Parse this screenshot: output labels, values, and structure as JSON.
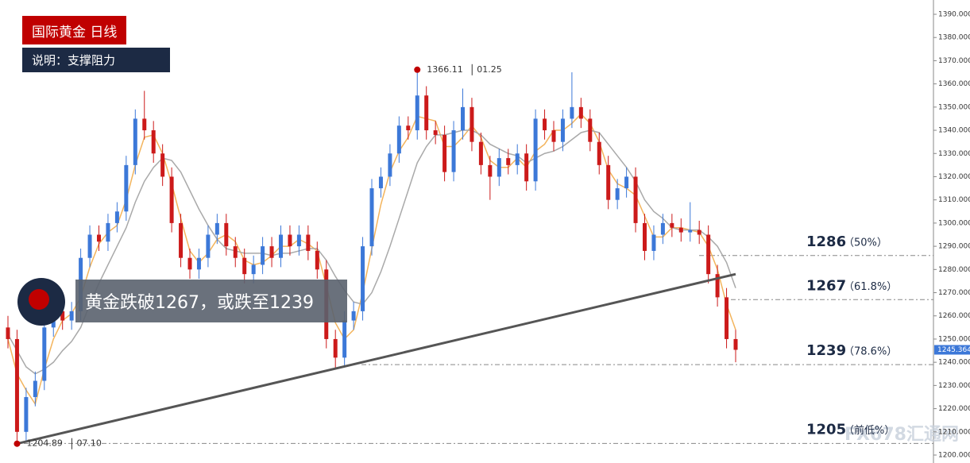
{
  "header": {
    "title": "国际黄金 日线",
    "subtitle": "说明：支撑阻力"
  },
  "callout": "黄金跌破1267，或跌至1239",
  "watermark": "FX678汇通网",
  "chart_data": {
    "type": "candlestick",
    "up_color": "#3c78d8",
    "down_color": "#cc1a1a",
    "ohlc": [
      [
        1255,
        1260,
        1246,
        1250
      ],
      [
        1250,
        1254,
        1204.89,
        1210
      ],
      [
        1210,
        1229,
        1206,
        1225
      ],
      [
        1225,
        1236,
        1221,
        1232
      ],
      [
        1232,
        1259,
        1228,
        1255
      ],
      [
        1255,
        1266,
        1251,
        1262
      ],
      [
        1262,
        1266,
        1254,
        1258
      ],
      [
        1258,
        1266,
        1254,
        1262
      ],
      [
        1262,
        1289,
        1258,
        1285
      ],
      [
        1285,
        1299,
        1281,
        1295
      ],
      [
        1295,
        1299,
        1288,
        1292
      ],
      [
        1292,
        1304,
        1288,
        1300
      ],
      [
        1300,
        1309,
        1296,
        1305
      ],
      [
        1305,
        1329,
        1301,
        1325
      ],
      [
        1325,
        1349,
        1321,
        1345
      ],
      [
        1345,
        1357,
        1336,
        1340
      ],
      [
        1340,
        1344,
        1326,
        1330
      ],
      [
        1330,
        1334,
        1316,
        1320
      ],
      [
        1320,
        1324,
        1296,
        1300
      ],
      [
        1300,
        1304,
        1281,
        1285
      ],
      [
        1285,
        1289,
        1276,
        1280
      ],
      [
        1280,
        1289,
        1276,
        1285
      ],
      [
        1285,
        1299,
        1281,
        1295
      ],
      [
        1295,
        1304,
        1291,
        1300
      ],
      [
        1300,
        1304,
        1286,
        1290
      ],
      [
        1290,
        1294,
        1281,
        1285
      ],
      [
        1285,
        1289,
        1274,
        1278
      ],
      [
        1278,
        1286,
        1274,
        1282
      ],
      [
        1282,
        1294,
        1278,
        1290
      ],
      [
        1290,
        1294,
        1281,
        1285
      ],
      [
        1285,
        1299,
        1281,
        1295
      ],
      [
        1295,
        1299,
        1286,
        1290
      ],
      [
        1290,
        1299,
        1286,
        1295
      ],
      [
        1295,
        1299,
        1284,
        1288
      ],
      [
        1288,
        1292,
        1276,
        1280
      ],
      [
        1280,
        1284,
        1246,
        1250
      ],
      [
        1250,
        1254,
        1237,
        1242
      ],
      [
        1242,
        1262,
        1238,
        1258
      ],
      [
        1258,
        1266,
        1254,
        1262
      ],
      [
        1262,
        1294,
        1258,
        1290
      ],
      [
        1290,
        1319,
        1286,
        1315
      ],
      [
        1315,
        1324,
        1311,
        1320
      ],
      [
        1320,
        1334,
        1316,
        1330
      ],
      [
        1330,
        1346,
        1326,
        1342
      ],
      [
        1342,
        1346,
        1336,
        1340
      ],
      [
        1340,
        1366.11,
        1336,
        1355
      ],
      [
        1355,
        1359,
        1336,
        1340
      ],
      [
        1340,
        1344,
        1334,
        1338
      ],
      [
        1338,
        1342,
        1318,
        1322
      ],
      [
        1322,
        1344,
        1318,
        1340
      ],
      [
        1340,
        1358,
        1336,
        1350
      ],
      [
        1350,
        1354,
        1331,
        1335
      ],
      [
        1335,
        1339,
        1321,
        1325
      ],
      [
        1325,
        1329,
        1310,
        1320
      ],
      [
        1320,
        1332,
        1316,
        1328
      ],
      [
        1328,
        1332,
        1321,
        1325
      ],
      [
        1325,
        1334,
        1321,
        1330
      ],
      [
        1330,
        1334,
        1314,
        1318
      ],
      [
        1318,
        1349,
        1314,
        1345
      ],
      [
        1345,
        1349,
        1336,
        1340
      ],
      [
        1340,
        1344,
        1331,
        1335
      ],
      [
        1335,
        1349,
        1331,
        1345
      ],
      [
        1345,
        1365,
        1341,
        1350
      ],
      [
        1350,
        1354,
        1341,
        1345
      ],
      [
        1345,
        1349,
        1331,
        1335
      ],
      [
        1335,
        1339,
        1321,
        1325
      ],
      [
        1325,
        1329,
        1306,
        1310
      ],
      [
        1310,
        1319,
        1306,
        1315
      ],
      [
        1315,
        1324,
        1311,
        1320
      ],
      [
        1320,
        1324,
        1296,
        1300
      ],
      [
        1300,
        1304,
        1284,
        1288
      ],
      [
        1288,
        1299,
        1284,
        1295
      ],
      [
        1295,
        1304,
        1291,
        1300
      ],
      [
        1300,
        1304,
        1294,
        1298
      ],
      [
        1298,
        1302,
        1292,
        1296
      ],
      [
        1296,
        1309,
        1292,
        1297
      ],
      [
        1297,
        1301,
        1291,
        1295
      ],
      [
        1295,
        1299,
        1274,
        1278
      ],
      [
        1278,
        1282,
        1264,
        1268
      ],
      [
        1268,
        1272,
        1246,
        1250
      ],
      [
        1250,
        1254,
        1240,
        1245.364
      ]
    ],
    "series": [
      {
        "color": "#f3b45c",
        "values": [
          1250,
          1235,
          1228,
          1222,
          1237,
          1250,
          1258,
          1261,
          1268,
          1281,
          1291,
          1296,
          1299,
          1310,
          1325,
          1337,
          1338,
          1330,
          1317,
          1302,
          1288,
          1283,
          1287,
          1293,
          1295,
          1292,
          1284,
          1282,
          1283,
          1286,
          1290,
          1290,
          1293,
          1291,
          1288,
          1273,
          1257,
          1250,
          1254,
          1270,
          1289,
          1308,
          1322,
          1331,
          1337,
          1346,
          1345,
          1344,
          1333,
          1333,
          1337,
          1342,
          1337,
          1327,
          1324,
          1324,
          1328,
          1324,
          1331,
          1334,
          1340,
          1340,
          1343,
          1347,
          1343,
          1335,
          1323,
          1317,
          1315,
          1312,
          1303,
          1294,
          1294,
          1298,
          1298,
          1297,
          1296,
          1290,
          1280,
          1265,
          1254
        ]
      },
      {
        "color": "#a9a9a9",
        "values": [
          1252,
          1245,
          1238,
          1235,
          1237,
          1240,
          1245,
          1249,
          1255,
          1265,
          1274,
          1282,
          1290,
          1298,
          1309,
          1318,
          1324,
          1328,
          1327,
          1322,
          1314,
          1306,
          1299,
          1293,
          1289,
          1288,
          1287,
          1287,
          1287,
          1286,
          1287,
          1287,
          1288,
          1289,
          1289,
          1284,
          1277,
          1271,
          1266,
          1265,
          1270,
          1279,
          1290,
          1302,
          1314,
          1326,
          1333,
          1338,
          1338,
          1339,
          1340,
          1340,
          1338,
          1334,
          1332,
          1330,
          1329,
          1326,
          1328,
          1330,
          1331,
          1333,
          1336,
          1339,
          1340,
          1339,
          1334,
          1329,
          1324,
          1318,
          1310,
          1305,
          1302,
          1298,
          1297,
          1297,
          1297,
          1294,
          1290,
          1283,
          1272
        ]
      }
    ],
    "trendline": [
      1204.89,
      1278
    ],
    "annotations": [
      {
        "value": 1366.11,
        "date": "01.25"
      },
      {
        "value": 1204.89,
        "date": "07.10"
      }
    ],
    "levels": [
      {
        "value": 1286,
        "label": "1286",
        "note": "（50%）"
      },
      {
        "value": 1267,
        "label": "1267",
        "note": "（61.8%）"
      },
      {
        "value": 1239,
        "label": "1239",
        "note": "（78.6%）"
      },
      {
        "value": 1205,
        "label": "1205",
        "note": "（前低%）"
      }
    ],
    "last_price": {
      "value": 1245.364,
      "label": "1245.364"
    },
    "ylim": [
      1197,
      1394
    ],
    "yticks": [
      {
        "value": 1200,
        "label": "1200.000"
      },
      {
        "value": 1210,
        "label": "1210.000"
      },
      {
        "value": 1220,
        "label": "1220.000"
      },
      {
        "value": 1230,
        "label": "1230.000"
      },
      {
        "value": 1240,
        "label": "1240.000"
      },
      {
        "value": 1250,
        "label": "1250.000"
      },
      {
        "value": 1260,
        "label": "1260.000"
      },
      {
        "value": 1270,
        "label": "1270.000"
      },
      {
        "value": 1280,
        "label": "1280.000"
      },
      {
        "value": 1290,
        "label": "1290.000"
      },
      {
        "value": 1300,
        "label": "1300.000"
      },
      {
        "value": 1310,
        "label": "1310.000"
      },
      {
        "value": 1320,
        "label": "1320.000"
      },
      {
        "value": 1330,
        "label": "1330.000"
      },
      {
        "value": 1340,
        "label": "1340.000"
      },
      {
        "value": 1350,
        "label": "1350.000"
      },
      {
        "value": 1360,
        "label": "1360.000"
      },
      {
        "value": 1370,
        "label": "1370.000"
      },
      {
        "value": 1380,
        "label": "1380.000"
      },
      {
        "value": 1390,
        "label": "1390.000"
      }
    ]
  }
}
